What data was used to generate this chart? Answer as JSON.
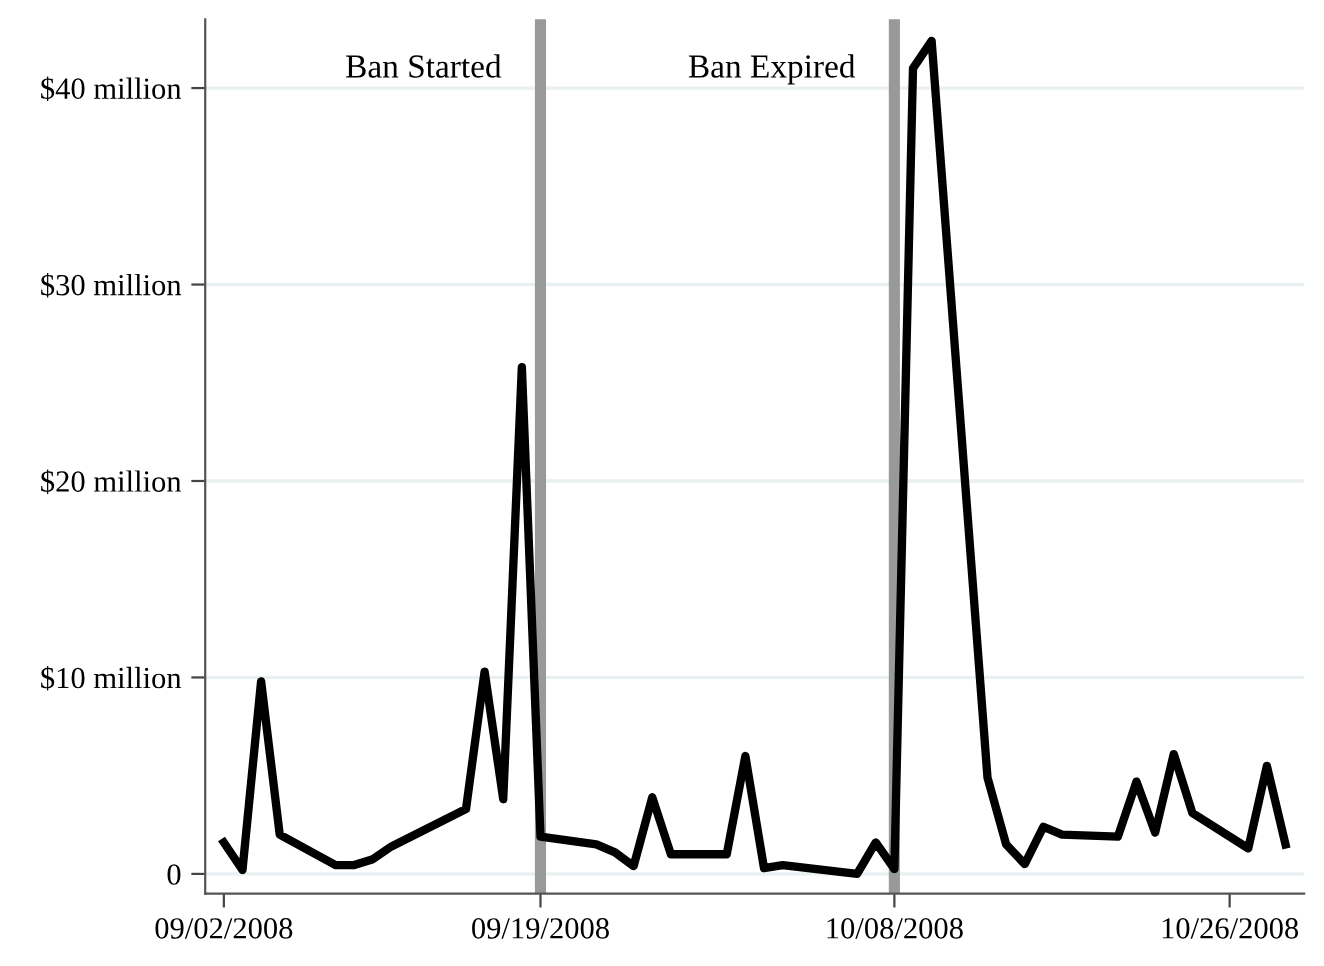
{
  "chart_data": {
    "type": "line",
    "x": [
      "2008-09-02",
      "2008-09-03",
      "2008-09-04",
      "2008-09-05",
      "2008-09-08",
      "2008-09-09",
      "2008-09-10",
      "2008-09-11",
      "2008-09-15",
      "2008-09-16",
      "2008-09-17",
      "2008-09-18",
      "2008-09-19",
      "2008-09-22",
      "2008-09-23",
      "2008-09-24",
      "2008-09-25",
      "2008-09-26",
      "2008-09-29",
      "2008-09-30",
      "2008-10-01",
      "2008-10-02",
      "2008-10-06",
      "2008-10-07",
      "2008-10-08",
      "2008-10-09",
      "2008-10-10",
      "2008-10-13",
      "2008-10-14",
      "2008-10-15",
      "2008-10-16",
      "2008-10-17",
      "2008-10-20",
      "2008-10-21",
      "2008-10-22",
      "2008-10-23",
      "2008-10-24",
      "2008-10-27",
      "2008-10-28",
      "2008-10-29"
    ],
    "series": [
      {
        "color": "#000000",
        "values": [
          1.6,
          0.2,
          9.8,
          2.0,
          0.45,
          0.45,
          0.75,
          1.4,
          3.3,
          10.3,
          3.8,
          25.8,
          1.9,
          1.5,
          1.1,
          0.4,
          3.9,
          1.0,
          1.0,
          6.0,
          0.3,
          0.45,
          0.0,
          1.6,
          0.25,
          41.0,
          42.4,
          4.9,
          1.5,
          0.5,
          2.4,
          2.0,
          1.9,
          4.7,
          2.1,
          6.1,
          3.1,
          1.3,
          5.5,
          1.5
        ]
      }
    ],
    "xlim": [
      "2008-09-01",
      "2008-10-30"
    ],
    "xticks": [
      {
        "value": "2008-09-02",
        "label": "09/02/2008"
      },
      {
        "value": "2008-09-19",
        "label": "09/19/2008"
      },
      {
        "value": "2008-10-08",
        "label": "10/08/2008"
      },
      {
        "value": "2008-10-26",
        "label": "10/26/2008"
      }
    ],
    "ylim": [
      -1,
      43.5
    ],
    "yticks": [
      0,
      {
        "value": 10,
        "label": "$10 million"
      },
      {
        "value": 20,
        "label": "$20 million"
      },
      {
        "value": 30,
        "label": "$30 million"
      },
      {
        "value": 40,
        "label": "$40 million"
      }
    ],
    "grid": "y",
    "marker": "none",
    "line_style": "solid",
    "ref_lines": [
      {
        "axis": "x",
        "value": "2008-09-19",
        "label": "Ban Started",
        "color": "#999999"
      },
      {
        "axis": "x",
        "value": "2008-10-08",
        "label": "Ban Expired",
        "color": "#999999"
      }
    ]
  }
}
